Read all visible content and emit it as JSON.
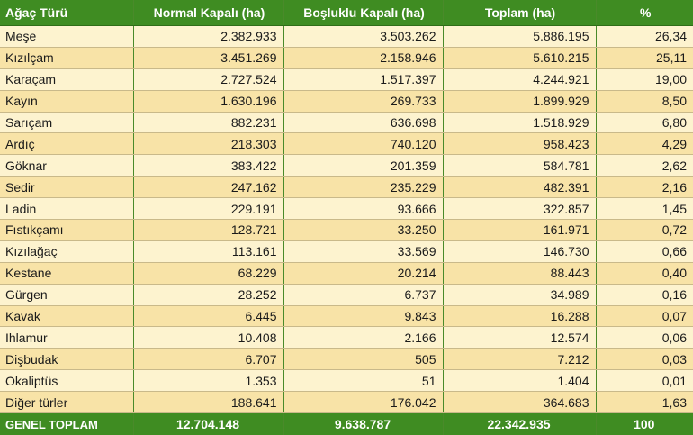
{
  "table": {
    "headers": [
      "Ağaç Türü",
      "Normal Kapalı (ha)",
      "Boşluklu Kapalı (ha)",
      "Toplam (ha)",
      "%"
    ],
    "rows": [
      [
        "Meşe",
        "2.382.933",
        "3.503.262",
        "5.886.195",
        "26,34"
      ],
      [
        "Kızılçam",
        "3.451.269",
        "2.158.946",
        "5.610.215",
        "25,11"
      ],
      [
        "Karaçam",
        "2.727.524",
        "1.517.397",
        "4.244.921",
        "19,00"
      ],
      [
        "Kayın",
        "1.630.196",
        "269.733",
        "1.899.929",
        "8,50"
      ],
      [
        "Sarıçam",
        "882.231",
        "636.698",
        "1.518.929",
        "6,80"
      ],
      [
        "Ardıç",
        "218.303",
        "740.120",
        "958.423",
        "4,29"
      ],
      [
        "Göknar",
        "383.422",
        "201.359",
        "584.781",
        "2,62"
      ],
      [
        "Sedir",
        "247.162",
        "235.229",
        "482.391",
        "2,16"
      ],
      [
        "Ladin",
        "229.191",
        "93.666",
        "322.857",
        "1,45"
      ],
      [
        "Fıstıkçamı",
        "128.721",
        "33.250",
        "161.971",
        "0,72"
      ],
      [
        "Kızılağaç",
        "113.161",
        "33.569",
        "146.730",
        "0,66"
      ],
      [
        "Kestane",
        "68.229",
        "20.214",
        "88.443",
        "0,40"
      ],
      [
        "Gürgen",
        "28.252",
        "6.737",
        "34.989",
        "0,16"
      ],
      [
        "Kavak",
        "6.445",
        "9.843",
        "16.288",
        "0,07"
      ],
      [
        "Ihlamur",
        "10.408",
        "2.166",
        "12.574",
        "0,06"
      ],
      [
        "Dişbudak",
        "6.707",
        "505",
        "7.212",
        "0,03"
      ],
      [
        "Okaliptüs",
        "1.353",
        "51",
        "1.404",
        "0,01"
      ],
      [
        "Diğer türler",
        "188.641",
        "176.042",
        "364.683",
        "1,63"
      ]
    ],
    "total": [
      "GENEL TOPLAM",
      "12.704.148",
      "9.638.787",
      "22.342.935",
      "100"
    ]
  },
  "colors": {
    "header_bg": "#3f8c22",
    "row_light": "#fdf3cf",
    "row_dark": "#f8e3a7"
  }
}
